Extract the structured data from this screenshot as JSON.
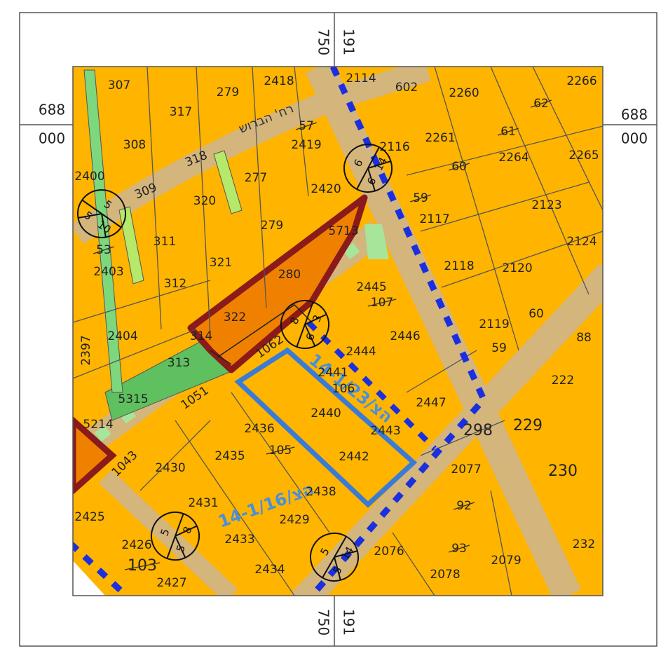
{
  "frame": {
    "top_left": "750",
    "top_right": "191",
    "bottom_left": "750",
    "bottom_right": "191",
    "left_top": "688",
    "left_bottom": "000",
    "right_top": "688",
    "right_bottom": "000"
  },
  "parcels": [
    "307",
    "317",
    "279",
    "2418",
    "2114",
    "602",
    "2260",
    "2266",
    "62",
    "308",
    "318",
    "57",
    "2419",
    "2116",
    "2261",
    "61",
    "2264",
    "2265",
    "2400",
    "309",
    "277",
    "60",
    "320",
    "2420",
    "59",
    "2123",
    "2117",
    "279",
    "5713",
    "53",
    "311",
    "321",
    "2124",
    "2403",
    "2118",
    "2120",
    "280",
    "2445",
    "107",
    "312",
    "322",
    "60",
    "2119",
    "88",
    "2404",
    "314",
    "2446",
    "59",
    "2444",
    "313",
    "1062",
    "2441",
    "106",
    "222",
    "2397",
    "5315",
    "1051",
    "2447",
    "2440",
    "5214",
    "2436",
    "105",
    "2443",
    "298",
    "229",
    "2435",
    "2442",
    "1043",
    "2430",
    "2077",
    "230",
    "2431",
    "2438",
    "92",
    "2425",
    "2429",
    "2426",
    "2433",
    "2076",
    "93",
    "232",
    "103",
    "2427",
    "2434",
    "2078",
    "2079"
  ],
  "streets": [
    "רח' הברוש"
  ],
  "plans": [
    "הצ/14-1/23",
    "הצ/14-1/16"
  ],
  "markers": [
    [
      "6",
      "6",
      "14"
    ],
    [
      "5",
      "5",
      "10"
    ],
    [
      "8",
      "6",
      "3"
    ],
    [
      "5",
      "5",
      "8"
    ],
    [
      "5",
      "5",
      "14"
    ]
  ]
}
